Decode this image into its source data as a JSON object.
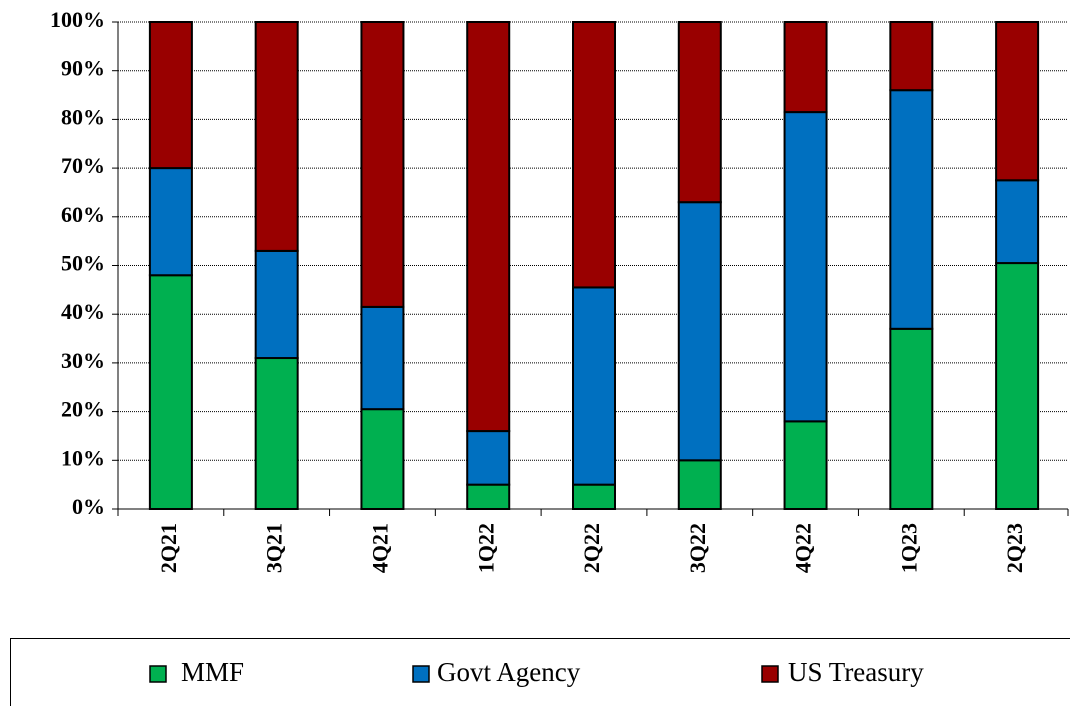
{
  "chart_data": {
    "type": "stacked_bar",
    "categories": [
      "2Q21",
      "3Q21",
      "4Q21",
      "1Q22",
      "2Q22",
      "3Q22",
      "4Q22",
      "1Q23",
      "2Q23"
    ],
    "series": [
      {
        "name": "MMF",
        "color": "#00b050",
        "values": [
          48,
          31,
          20.5,
          5,
          5,
          10,
          18,
          37,
          50.5
        ]
      },
      {
        "name": "Govt Agency",
        "color": "#0070c0",
        "values": [
          22,
          22,
          21,
          11,
          40.5,
          53,
          63.5,
          49,
          17
        ]
      },
      {
        "name": "US Treasury",
        "color": "#990000",
        "values": [
          30,
          47,
          58.5,
          84,
          54.5,
          37,
          18.5,
          14,
          32.5
        ]
      }
    ],
    "ylim": [
      0,
      100
    ],
    "yticks": [
      {
        "value": 0,
        "label": "0%"
      },
      {
        "value": 10,
        "label": "10%"
      },
      {
        "value": 20,
        "label": "20%"
      },
      {
        "value": 30,
        "label": "30%"
      },
      {
        "value": 40,
        "label": "40%"
      },
      {
        "value": 50,
        "label": "50%"
      },
      {
        "value": 60,
        "label": "60%"
      },
      {
        "value": 70,
        "label": "70%"
      },
      {
        "value": 80,
        "label": "80%"
      },
      {
        "value": 90,
        "label": "90%"
      },
      {
        "value": 100,
        "label": "100%"
      }
    ],
    "grid": true,
    "legend": "bottom"
  }
}
